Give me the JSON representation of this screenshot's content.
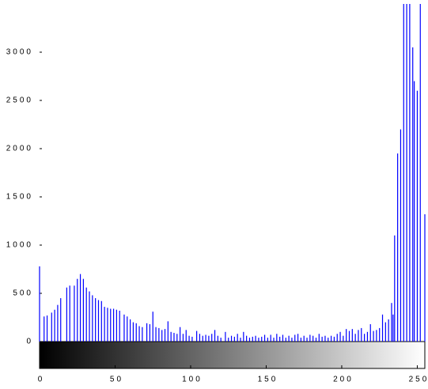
{
  "chart_data": {
    "type": "stem",
    "x": [
      0,
      1,
      2,
      3,
      4,
      5,
      6,
      7,
      8,
      9,
      10,
      11,
      12,
      13,
      14,
      15,
      16,
      17,
      18,
      19,
      20,
      21,
      22,
      23,
      24,
      25,
      26,
      27,
      28,
      29,
      30,
      31,
      32,
      33,
      34,
      35,
      36,
      37,
      38,
      39,
      40,
      41,
      42,
      43,
      44,
      45,
      46,
      47,
      48,
      49,
      50,
      51,
      52,
      53,
      54,
      55,
      56,
      57,
      58,
      59,
      60,
      61,
      62,
      63,
      64,
      65,
      66,
      67,
      68,
      69,
      70,
      71,
      72,
      73,
      74,
      75,
      76,
      77,
      78,
      79,
      80,
      81,
      82,
      83,
      84,
      85,
      86,
      87,
      88,
      89,
      90,
      91,
      92,
      93,
      94,
      95,
      96,
      97,
      98,
      99,
      100,
      101,
      102,
      103,
      104,
      105,
      106,
      107,
      108,
      109,
      110,
      111,
      112,
      113,
      114,
      115,
      116,
      117,
      118,
      119,
      120,
      121,
      122,
      123,
      124,
      125,
      126,
      127,
      128,
      129,
      130,
      131,
      132,
      133,
      134,
      135,
      136,
      137,
      138,
      139,
      140,
      141,
      142,
      143,
      144,
      145,
      146,
      147,
      148,
      149,
      150,
      151,
      152,
      153,
      154,
      155,
      156,
      157,
      158,
      159,
      160,
      161,
      162,
      163,
      164,
      165,
      166,
      167,
      168,
      169,
      170,
      171,
      172,
      173,
      174,
      175,
      176,
      177,
      178,
      179,
      180,
      181,
      182,
      183,
      184,
      185,
      186,
      187,
      188,
      189,
      190,
      191,
      192,
      193,
      194,
      195,
      196,
      197,
      198,
      199,
      200,
      201,
      202,
      203,
      204,
      205,
      206,
      207,
      208,
      209,
      210,
      211,
      212,
      213,
      214,
      215,
      216,
      217,
      218,
      219,
      220,
      221,
      222,
      223,
      224,
      225,
      226,
      227,
      228,
      229,
      230,
      231,
      232,
      233,
      234,
      235,
      236,
      237,
      238,
      239,
      240,
      241,
      242,
      243,
      244,
      245,
      246,
      247,
      248,
      249,
      250,
      251,
      252,
      253,
      254,
      255
    ],
    "values": [
      780,
      0,
      0,
      260,
      0,
      270,
      0,
      0,
      300,
      0,
      330,
      0,
      380,
      0,
      450,
      0,
      0,
      0,
      560,
      0,
      580,
      0,
      0,
      580,
      0,
      650,
      0,
      700,
      0,
      650,
      0,
      560,
      0,
      520,
      0,
      480,
      0,
      450,
      0,
      430,
      0,
      420,
      0,
      360,
      0,
      350,
      0,
      340,
      0,
      340,
      0,
      330,
      0,
      320,
      0,
      0,
      280,
      0,
      260,
      0,
      230,
      0,
      200,
      0,
      190,
      0,
      160,
      0,
      150,
      0,
      0,
      190,
      0,
      180,
      0,
      310,
      0,
      150,
      0,
      140,
      0,
      120,
      0,
      130,
      0,
      210,
      0,
      100,
      0,
      90,
      0,
      80,
      0,
      150,
      0,
      80,
      0,
      120,
      0,
      60,
      0,
      50,
      0,
      0,
      110,
      0,
      80,
      0,
      60,
      0,
      70,
      0,
      60,
      0,
      80,
      0,
      120,
      0,
      60,
      0,
      40,
      0,
      0,
      100,
      0,
      40,
      0,
      60,
      0,
      50,
      0,
      80,
      0,
      40,
      0,
      100,
      0,
      60,
      0,
      40,
      0,
      50,
      0,
      60,
      0,
      40,
      0,
      50,
      0,
      70,
      0,
      40,
      0,
      70,
      0,
      40,
      0,
      80,
      0,
      50,
      0,
      70,
      0,
      40,
      0,
      60,
      0,
      40,
      0,
      70,
      0,
      80,
      0,
      40,
      0,
      60,
      0,
      40,
      0,
      70,
      0,
      60,
      0,
      40,
      0,
      80,
      0,
      50,
      0,
      60,
      0,
      40,
      0,
      60,
      0,
      50,
      0,
      80,
      0,
      100,
      0,
      60,
      0,
      130,
      0,
      110,
      0,
      130,
      0,
      80,
      0,
      120,
      0,
      140,
      0,
      80,
      0,
      100,
      0,
      180,
      0,
      110,
      0,
      120,
      0,
      140,
      0,
      280,
      0,
      200,
      0,
      230,
      0,
      400,
      280,
      1100,
      0,
      1950,
      0,
      2200,
      0,
      3500,
      0,
      3500,
      0,
      3500,
      0,
      3050,
      2700,
      0,
      2600,
      0,
      3500,
      0,
      0,
      1320
    ],
    "color": "#0000ff",
    "xlim": [
      0,
      255
    ],
    "xticks": [
      0,
      50,
      100,
      150,
      200,
      250
    ],
    "ylim": [
      0,
      3500
    ],
    "yticks": [
      0,
      500,
      1000,
      1500,
      2000,
      2500,
      3000
    ]
  }
}
